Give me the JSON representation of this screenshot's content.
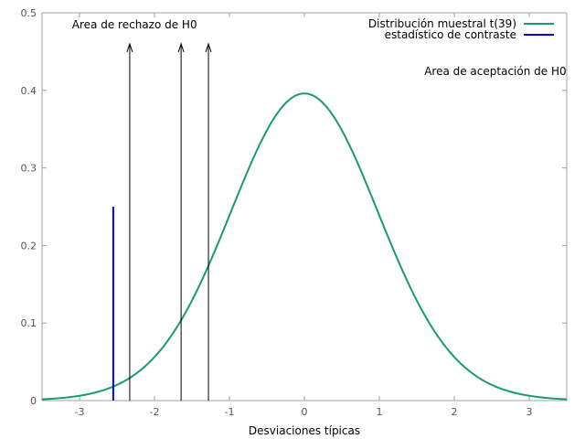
{
  "chart_data": {
    "type": "line",
    "title": "",
    "xlabel": "Desviaciones típicas",
    "ylabel": "",
    "xlim": [
      -3.5,
      3.5
    ],
    "ylim": [
      0,
      0.5
    ],
    "xticks": [
      -3,
      -2,
      -1,
      0,
      1,
      2,
      3
    ],
    "yticks": [
      0,
      0.1,
      0.2,
      0.3,
      0.4,
      0.5
    ],
    "grid": false,
    "legend_position": "top-right",
    "series": [
      {
        "name": "Distribución muestral t(39)",
        "color": "#1a9a74",
        "degrees_of_freedom": 39,
        "peak_y": 0.396
      },
      {
        "name": "estadístico de contraste",
        "color": "#0000ff",
        "x": [
          -2.55,
          -2.55
        ],
        "y": [
          0,
          0.25
        ]
      }
    ],
    "arrows": [
      {
        "x": -2.33,
        "y_from": 0,
        "y_to": 0.46
      },
      {
        "x": -1.645,
        "y_from": 0,
        "y_to": 0.46
      },
      {
        "x": -1.28,
        "y_from": 0,
        "y_to": 0.46
      }
    ],
    "annotations": [
      {
        "text": "Area de rechazo de H0",
        "x": -3.1,
        "y": 0.48
      },
      {
        "text": "Area de aceptación de H0",
        "x": 1.6,
        "y": 0.42
      }
    ]
  }
}
